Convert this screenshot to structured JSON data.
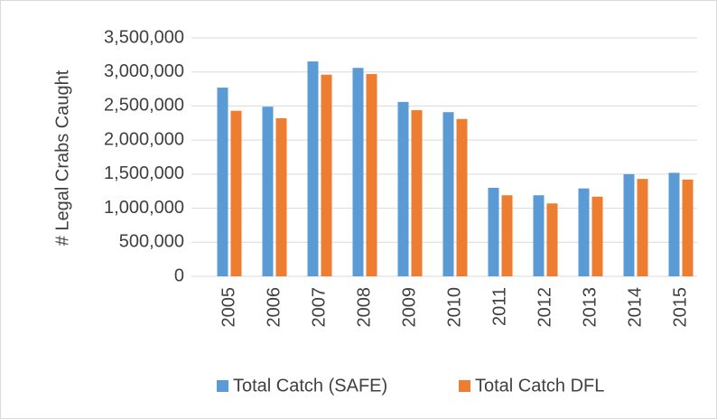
{
  "chart_data": {
    "type": "bar",
    "y_label": "# Legal Crabs Caught",
    "categories": [
      "2005",
      "2006",
      "2007",
      "2008",
      "2009",
      "2010",
      "2011",
      "2012",
      "2013",
      "2014",
      "2015"
    ],
    "series": [
      {
        "name": "Total Catch (SAFE)",
        "color": "#5b9bd5",
        "values": [
          2770000,
          2490000,
          3155000,
          3060000,
          2560000,
          2410000,
          1300000,
          1190000,
          1290000,
          1500000,
          1520000
        ]
      },
      {
        "name": "Total Catch DFL",
        "color": "#ed7d31",
        "values": [
          2430000,
          2320000,
          2960000,
          2970000,
          2440000,
          2310000,
          1190000,
          1070000,
          1170000,
          1430000,
          1420000
        ]
      }
    ],
    "ylim": [
      0,
      3500000
    ],
    "yticks": [
      0,
      {
        "value": 500000,
        "label": "500,000"
      },
      {
        "value": 1000000,
        "label": "1,000,000"
      },
      {
        "value": 1500000,
        "label": "1,500,000"
      },
      {
        "value": 2000000,
        "label": "2,000,000"
      },
      {
        "value": 2500000,
        "label": "2,500,000"
      },
      {
        "value": 3000000,
        "label": "3,000,000"
      },
      {
        "value": 3500000,
        "label": "3,500,000"
      }
    ],
    "grid": true,
    "legend": "bottom"
  }
}
